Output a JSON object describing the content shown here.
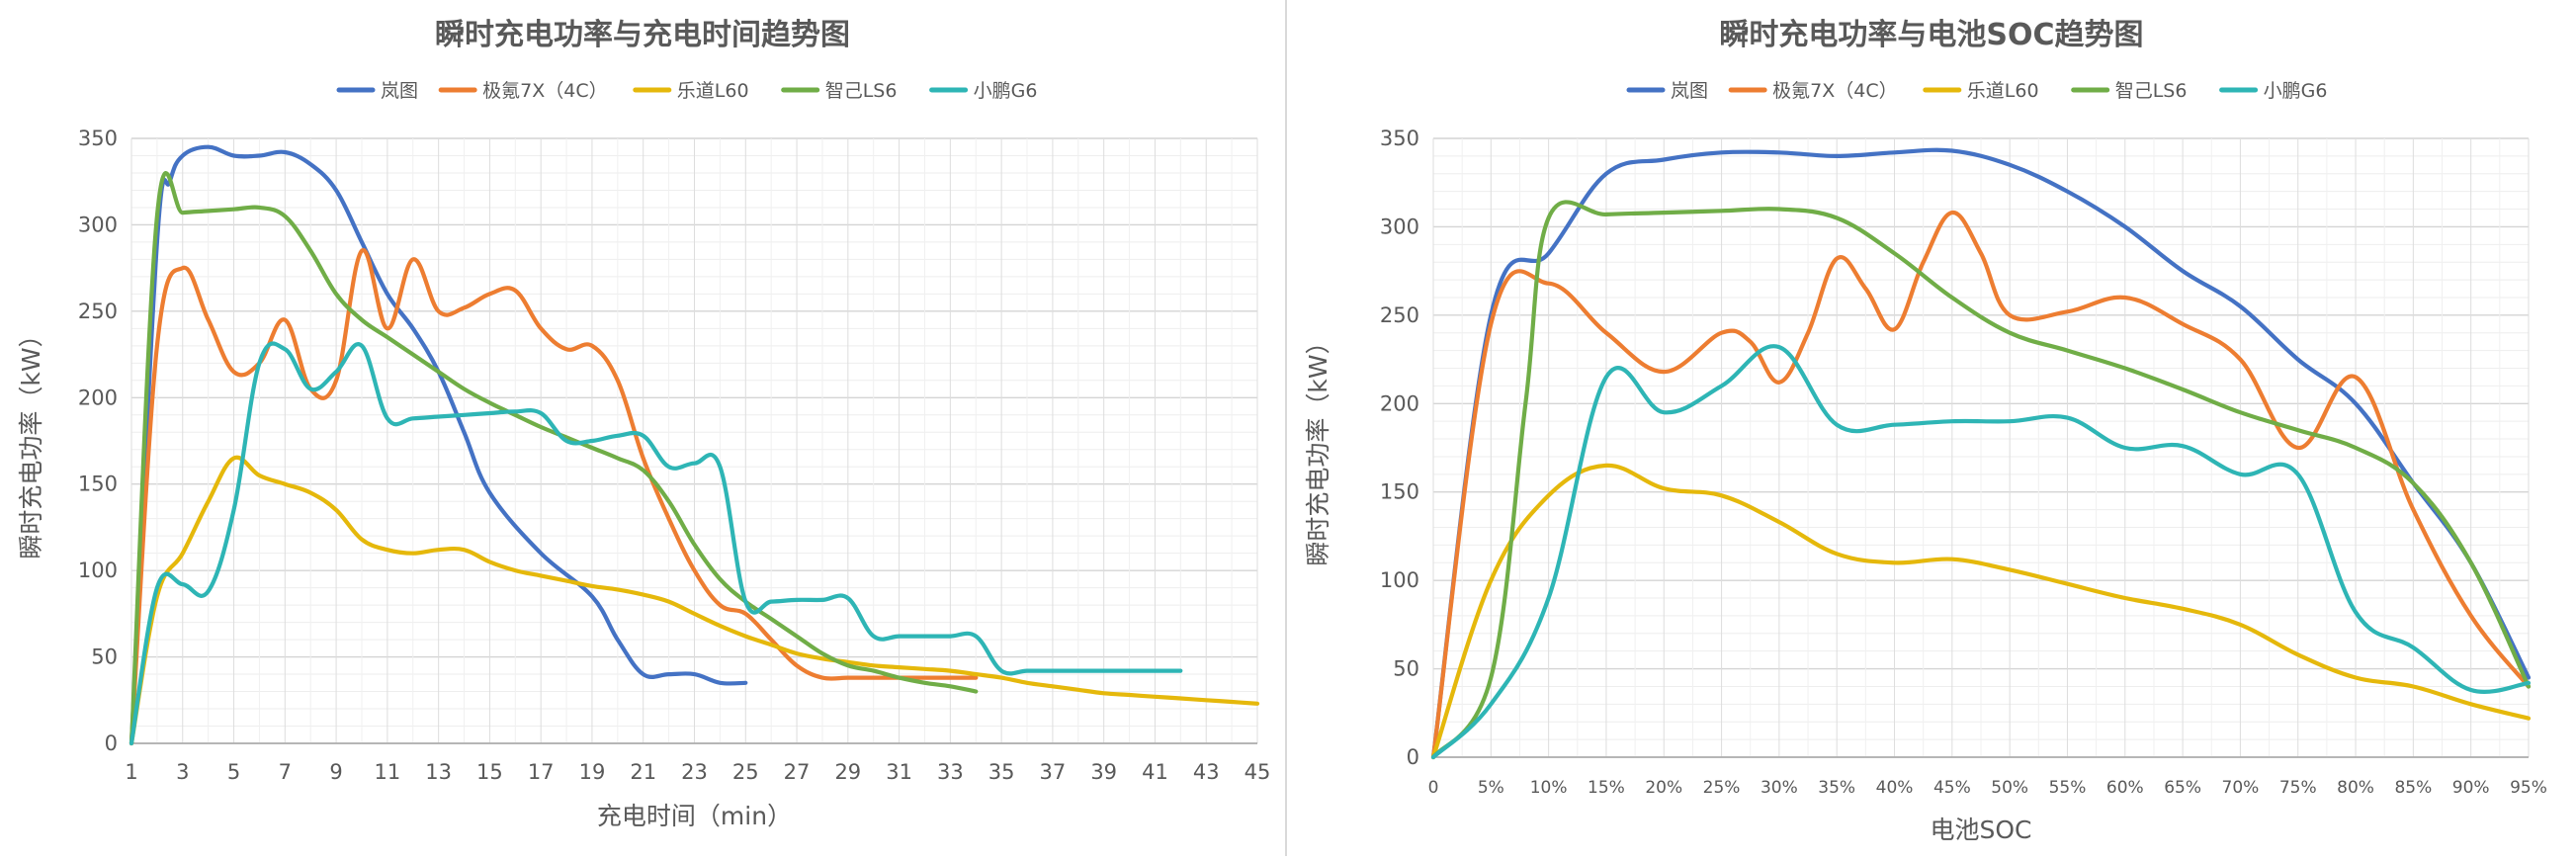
{
  "chart_data": [
    {
      "type": "line",
      "title": "瞬时充电功率与充电时间趋势图",
      "xlabel": "充电时间（min）",
      "ylabel": "瞬时充电功率（kW）",
      "xlim": [
        1,
        45
      ],
      "ylim": [
        0,
        350
      ],
      "x_ticks": [
        1,
        3,
        5,
        7,
        9,
        11,
        13,
        15,
        17,
        19,
        21,
        23,
        25,
        27,
        29,
        31,
        33,
        35,
        37,
        39,
        41,
        43,
        45
      ],
      "y_ticks": [
        0,
        50,
        100,
        150,
        200,
        250,
        300,
        350
      ],
      "grid": true,
      "legend_position": "top",
      "series": [
        {
          "name": "岚图",
          "color": "#4472C4",
          "x": [
            1,
            2,
            2.5,
            3,
            4,
            5,
            6,
            7,
            8,
            9,
            10,
            11,
            12,
            13,
            14,
            15,
            17,
            19,
            20,
            21,
            22,
            23,
            24,
            25
          ],
          "y": [
            0,
            290,
            325,
            340,
            345,
            340,
            340,
            342,
            335,
            320,
            290,
            260,
            240,
            215,
            180,
            145,
            110,
            85,
            60,
            40,
            40,
            40,
            35,
            35
          ]
        },
        {
          "name": "极氪7X（4C）",
          "color": "#ED7D31",
          "x": [
            1,
            2,
            3,
            4,
            5,
            6,
            7,
            8,
            9,
            10,
            11,
            12,
            13,
            14,
            15,
            16,
            17,
            18,
            19,
            20,
            21,
            22,
            23,
            24,
            25,
            26,
            27,
            28,
            29,
            30,
            31,
            32,
            33,
            34
          ],
          "y": [
            0,
            230,
            275,
            245,
            215,
            220,
            245,
            205,
            210,
            285,
            240,
            280,
            250,
            252,
            260,
            262,
            240,
            228,
            230,
            210,
            165,
            130,
            100,
            80,
            75,
            60,
            45,
            38,
            38,
            38,
            38,
            38,
            38,
            38
          ]
        },
        {
          "name": "乐道L60",
          "color": "#E5B80B",
          "x": [
            1,
            2,
            3,
            4,
            5,
            6,
            7,
            8,
            9,
            10,
            11,
            12,
            13,
            14,
            15,
            16,
            17,
            18,
            19,
            20,
            21,
            22,
            23,
            24,
            25,
            26,
            27,
            28,
            29,
            30,
            31,
            32,
            33,
            34,
            35,
            36,
            37,
            38,
            39,
            40,
            41,
            42,
            43,
            44,
            45
          ],
          "y": [
            0,
            85,
            110,
            140,
            165,
            155,
            150,
            145,
            135,
            118,
            112,
            110,
            112,
            112,
            105,
            100,
            97,
            94,
            91,
            89,
            86,
            82,
            75,
            68,
            62,
            57,
            52,
            49,
            47,
            45,
            44,
            43,
            42,
            40,
            38,
            35,
            33,
            31,
            29,
            28,
            27,
            26,
            25,
            24,
            23
          ]
        },
        {
          "name": "智己LS6",
          "color": "#70AD47",
          "x": [
            1,
            2,
            3,
            4,
            5,
            6,
            7,
            8,
            9,
            10,
            11,
            12,
            13,
            14,
            15,
            16,
            17,
            18,
            19,
            20,
            21,
            22,
            23,
            24,
            25,
            26,
            27,
            28,
            29,
            30,
            31,
            32,
            33,
            34
          ],
          "y": [
            0,
            305,
            307,
            308,
            309,
            310,
            305,
            285,
            260,
            245,
            235,
            225,
            215,
            205,
            197,
            190,
            183,
            177,
            171,
            165,
            158,
            140,
            115,
            95,
            82,
            72,
            62,
            52,
            45,
            42,
            38,
            35,
            33,
            30
          ]
        },
        {
          "name": "小鹏G6",
          "color": "#2EB5B5",
          "x": [
            1,
            2,
            3,
            4,
            5,
            6,
            7,
            8,
            9,
            10,
            11,
            12,
            13,
            14,
            15,
            16,
            17,
            18,
            19,
            20,
            21,
            22,
            23,
            24,
            25,
            26,
            27,
            28,
            29,
            30,
            31,
            32,
            33,
            34,
            35,
            36,
            37,
            38,
            39,
            40,
            41,
            42
          ],
          "y": [
            0,
            90,
            92,
            88,
            135,
            220,
            228,
            205,
            215,
            230,
            188,
            188,
            189,
            190,
            191,
            192,
            191,
            175,
            175,
            178,
            178,
            160,
            162,
            160,
            82,
            82,
            83,
            83,
            84,
            62,
            62,
            62,
            62,
            62,
            42,
            42,
            42,
            42,
            42,
            42,
            42,
            42
          ]
        }
      ]
    },
    {
      "type": "line",
      "title": "瞬时充电功率与电池SOC趋势图",
      "xlabel": "电池SOC",
      "ylabel": "瞬时充电功率（kW）",
      "x_categories": [
        "0",
        "5%",
        "10%",
        "15%",
        "20%",
        "25%",
        "30%",
        "35%",
        "40%",
        "45%",
        "50%",
        "55%",
        "60%",
        "65%",
        "70%",
        "75%",
        "80%",
        "85%",
        "90%",
        "95%"
      ],
      "xlim": [
        0,
        95
      ],
      "ylim": [
        0,
        350
      ],
      "y_ticks": [
        0,
        50,
        100,
        150,
        200,
        250,
        300,
        350
      ],
      "grid": true,
      "legend_position": "top",
      "series": [
        {
          "name": "岚图",
          "color": "#4472C4",
          "x": [
            0,
            5,
            10,
            15,
            20,
            25,
            30,
            35,
            40,
            45,
            50,
            55,
            60,
            65,
            70,
            75,
            80,
            85,
            90,
            95
          ],
          "y": [
            0,
            250,
            285,
            330,
            338,
            342,
            342,
            340,
            342,
            343,
            335,
            320,
            300,
            275,
            255,
            225,
            200,
            155,
            110,
            45
          ]
        },
        {
          "name": "极氪7X（4C）",
          "color": "#ED7D31",
          "x": [
            0,
            5,
            10,
            15,
            20,
            25,
            27.5,
            30,
            32.5,
            35,
            37.5,
            40,
            42.5,
            45,
            47.5,
            50,
            55,
            60,
            65,
            70,
            75,
            80,
            85,
            90,
            95
          ],
          "y": [
            0,
            245,
            268,
            240,
            218,
            240,
            235,
            212,
            240,
            282,
            265,
            242,
            280,
            308,
            285,
            250,
            252,
            260,
            245,
            225,
            175,
            215,
            140,
            80,
            40
          ]
        },
        {
          "name": "乐道L60",
          "color": "#E5B80B",
          "x": [
            0,
            5,
            10,
            15,
            20,
            25,
            30,
            35,
            40,
            45,
            50,
            55,
            60,
            65,
            70,
            75,
            80,
            85,
            90,
            95
          ],
          "y": [
            0,
            100,
            148,
            165,
            152,
            148,
            133,
            115,
            110,
            112,
            106,
            98,
            90,
            84,
            75,
            58,
            45,
            40,
            30,
            22
          ]
        },
        {
          "name": "智己LS6",
          "color": "#70AD47",
          "x": [
            0,
            5,
            8,
            10,
            15,
            20,
            25,
            30,
            35,
            40,
            45,
            50,
            55,
            60,
            65,
            70,
            75,
            80,
            85,
            90,
            95
          ],
          "y": [
            0,
            45,
            200,
            305,
            307,
            308,
            309,
            310,
            305,
            285,
            260,
            240,
            230,
            220,
            208,
            195,
            185,
            175,
            155,
            110,
            40
          ]
        },
        {
          "name": "小鹏G6",
          "color": "#2EB5B5",
          "x": [
            0,
            5,
            10,
            15,
            20,
            25,
            30,
            35,
            40,
            45,
            50,
            55,
            60,
            65,
            70,
            75,
            80,
            85,
            90,
            95
          ],
          "y": [
            0,
            30,
            90,
            215,
            195,
            210,
            232,
            188,
            188,
            190,
            190,
            192,
            175,
            176,
            160,
            160,
            82,
            62,
            38,
            42
          ]
        }
      ]
    }
  ]
}
